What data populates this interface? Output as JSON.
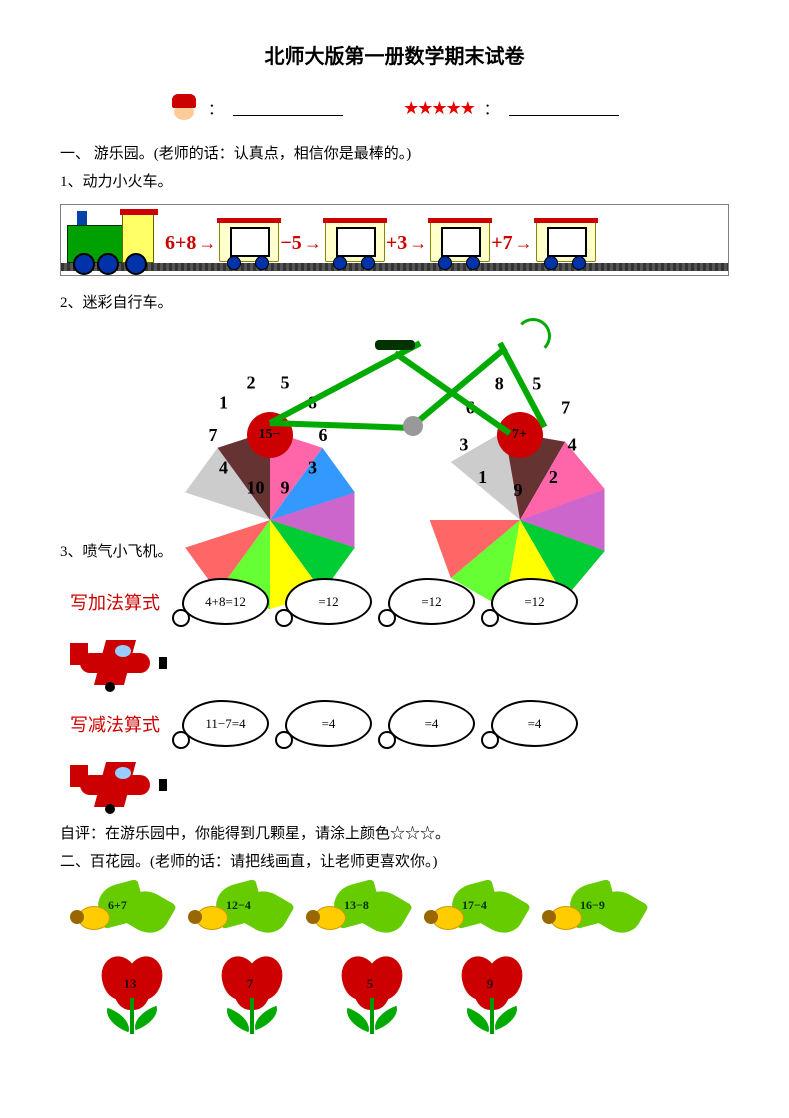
{
  "title": "北师大版第一册数学期末试卷",
  "header": {
    "name_colon": "：",
    "stars_colon": "：",
    "star_count": 5,
    "star_color": "#e60000"
  },
  "section1": {
    "heading": "一、  游乐园。(老师的话：认真点，相信你是最棒的。)",
    "q1_label": "1、动力小火车。",
    "q2_label": "2、迷彩自行车。",
    "q3_label": "3、喷气小飞机。",
    "self_eval": "自评：在游乐园中，你能得到几颗星，请涂上颜色☆☆☆。"
  },
  "train": {
    "start": "6+8",
    "ops": [
      "−5",
      "+3",
      "+7"
    ],
    "op_color": "#cc0000",
    "loco_body_color": "#00a000",
    "loco_cab_color": "#ffff66",
    "wagon_color": "#ffffcc",
    "wheel_color": "#0033aa"
  },
  "bicycle": {
    "left_hub": "15−",
    "right_hub": "7+",
    "hub_color": "#cc0000",
    "frame_color": "#00aa00",
    "left_numbers": [
      "5",
      "8",
      "6",
      "3",
      "9",
      "10",
      "4",
      "7",
      "1",
      "2"
    ],
    "right_numbers": [
      "5",
      "7",
      "4",
      "2",
      "9",
      "1",
      "3",
      "6",
      "8"
    ],
    "seg_colors": [
      "#cc66cc",
      "#00cc33",
      "#ffff00",
      "#66ff33",
      "#ff6666",
      "#ffffff",
      "#cccccc",
      "#663333",
      "#ff66aa",
      "#3399ff"
    ]
  },
  "airplane": {
    "add_label": "写加法算式",
    "sub_label": "写减法算式",
    "label_color": "#cc0000",
    "plane_color": "#cc0000",
    "add_clouds": [
      "4+8=12",
      "=12",
      "=12",
      "=12"
    ],
    "sub_clouds": [
      "11−7=4",
      "=4",
      "=4",
      "=4"
    ]
  },
  "section2": {
    "heading": "二、百花园。(老师的话：请把线画直，让老师更喜欢你。)",
    "bees": [
      "6+7",
      "12−4",
      "13−8",
      "17−4",
      "16−9"
    ],
    "flowers": [
      "13",
      "7",
      "5",
      "9"
    ],
    "wing_color": "#66cc00",
    "bee_body_color": "#ffcc00",
    "petal_color": "#cc0000",
    "leaf_color": "#00aa00"
  }
}
